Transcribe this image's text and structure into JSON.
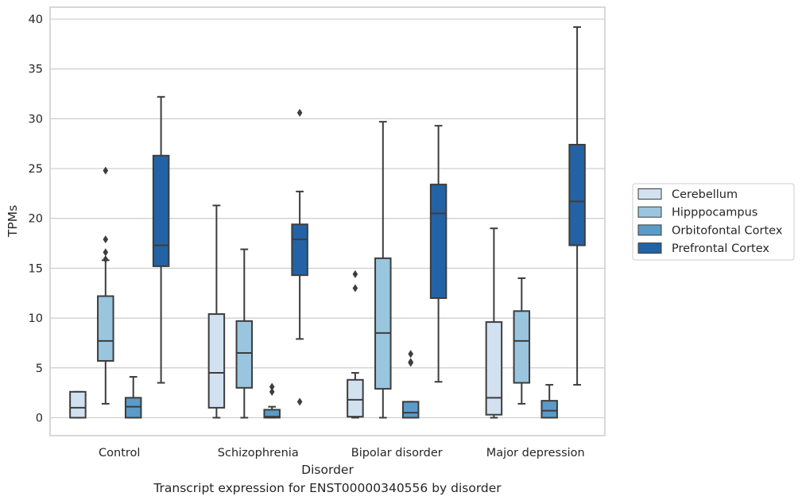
{
  "caption": "Transcript expression for ENST00000340556 by disorder",
  "chart_data": {
    "type": "box",
    "title": "",
    "xlabel": "Disorder",
    "ylabel": "TPMs",
    "ylim": [
      -1.8,
      41.2
    ],
    "yticks": [
      0,
      5,
      10,
      15,
      20,
      25,
      30,
      35,
      40
    ],
    "grid": "horizontal",
    "legend_position": "right",
    "categories": [
      "Control",
      "Schizophrenia",
      "Bipolar disorder",
      "Major depression"
    ],
    "series": [
      {
        "name": "Cerebellum",
        "color": "#d2e1f0",
        "boxes": [
          {
            "whislo": 0,
            "q1": 0,
            "med": 1.0,
            "q3": 2.6,
            "whishi": 2.6,
            "fliers": []
          },
          {
            "whislo": 0,
            "q1": 1.0,
            "med": 4.5,
            "q3": 10.4,
            "whishi": 21.3,
            "fliers": []
          },
          {
            "whislo": 0,
            "q1": 0.1,
            "med": 1.8,
            "q3": 3.8,
            "whishi": 4.5,
            "fliers": [
              13.0,
              14.4
            ]
          },
          {
            "whislo": 0,
            "q1": 0.3,
            "med": 2.0,
            "q3": 9.6,
            "whishi": 19.0,
            "fliers": []
          }
        ]
      },
      {
        "name": "Hipppocampus",
        "color": "#9ac5de",
        "boxes": [
          {
            "whislo": 1.4,
            "q1": 5.7,
            "med": 7.7,
            "q3": 12.2,
            "whishi": 15.8,
            "fliers": [
              15.9,
              16.6,
              17.9,
              24.8
            ]
          },
          {
            "whislo": 0,
            "q1": 3.0,
            "med": 6.5,
            "q3": 9.7,
            "whishi": 16.9,
            "fliers": []
          },
          {
            "whislo": 0,
            "q1": 2.9,
            "med": 8.5,
            "q3": 16.0,
            "whishi": 29.7,
            "fliers": []
          },
          {
            "whislo": 1.4,
            "q1": 3.5,
            "med": 7.7,
            "q3": 10.7,
            "whishi": 14.0,
            "fliers": []
          }
        ]
      },
      {
        "name": "Orbitofontal Cortex",
        "color": "#5a9bc8",
        "boxes": [
          {
            "whislo": 0,
            "q1": 0,
            "med": 1.1,
            "q3": 2.0,
            "whishi": 4.1,
            "fliers": []
          },
          {
            "whislo": 0,
            "q1": 0,
            "med": 0.1,
            "q3": 0.8,
            "whishi": 1.1,
            "fliers": [
              2.6,
              3.1
            ]
          },
          {
            "whislo": 0,
            "q1": 0,
            "med": 0.5,
            "q3": 1.6,
            "whishi": 1.6,
            "fliers": [
              5.5,
              5.6,
              6.4
            ]
          },
          {
            "whislo": 0,
            "q1": 0,
            "med": 0.7,
            "q3": 1.7,
            "whishi": 3.3,
            "fliers": []
          }
        ]
      },
      {
        "name": "Prefrontal Cortex",
        "color": "#2363a5",
        "boxes": [
          {
            "whislo": 3.5,
            "q1": 15.2,
            "med": 17.3,
            "q3": 26.3,
            "whishi": 32.2,
            "fliers": []
          },
          {
            "whislo": 7.9,
            "q1": 14.3,
            "med": 17.9,
            "q3": 19.4,
            "whishi": 22.7,
            "fliers": [
              1.6,
              30.6
            ]
          },
          {
            "whislo": 3.6,
            "q1": 12.0,
            "med": 20.5,
            "q3": 23.4,
            "whishi": 29.3,
            "fliers": []
          },
          {
            "whislo": 3.3,
            "q1": 17.3,
            "med": 21.7,
            "q3": 27.4,
            "whishi": 39.2,
            "fliers": []
          }
        ]
      }
    ]
  }
}
